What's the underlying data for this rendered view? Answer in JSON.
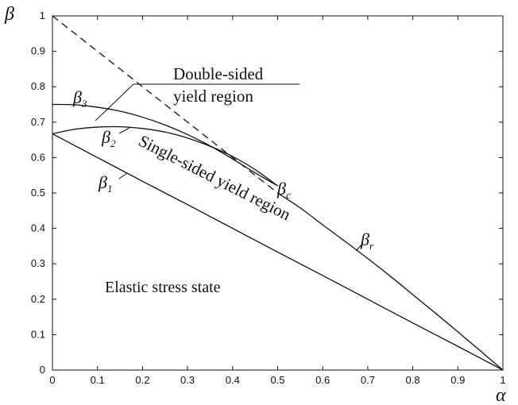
{
  "chart_data": {
    "type": "line",
    "xlabel": "α",
    "ylabel": "β",
    "xlim": [
      0,
      1
    ],
    "ylim": [
      0,
      1
    ],
    "x_ticks": [
      "0",
      "0.1",
      "0.2",
      "0.3",
      "0.4",
      "0.5",
      "0.6",
      "0.7",
      "0.8",
      "0.9",
      "1"
    ],
    "y_ticks": [
      "0",
      "0.1",
      "0.2",
      "0.3",
      "0.4",
      "0.5",
      "0.6",
      "0.7",
      "0.8",
      "0.9",
      "1"
    ],
    "grid": false,
    "series": [
      {
        "name": "β1",
        "style": "solid",
        "x": [
          0,
          0.1,
          0.2,
          0.3,
          0.4,
          0.5,
          0.6,
          0.7,
          0.8,
          0.9,
          1.0
        ],
        "y": [
          0.667,
          0.6,
          0.533,
          0.467,
          0.4,
          0.333,
          0.267,
          0.2,
          0.133,
          0.067,
          0
        ]
      },
      {
        "name": "β2",
        "style": "solid",
        "x": [
          0,
          0.05,
          0.1,
          0.15,
          0.2,
          0.25,
          0.3,
          0.35,
          0.4,
          0.45,
          0.5
        ],
        "y": [
          0.667,
          0.68,
          0.686,
          0.687,
          0.682,
          0.672,
          0.655,
          0.632,
          0.603,
          0.566,
          0.52
        ]
      },
      {
        "name": "β3",
        "style": "solid",
        "x": [
          0,
          0.05,
          0.1,
          0.15,
          0.2,
          0.25,
          0.3,
          0.35,
          0.4,
          0.45,
          0.5
        ],
        "y": [
          0.75,
          0.749,
          0.742,
          0.731,
          0.714,
          0.692,
          0.665,
          0.633,
          0.596,
          0.557,
          0.52
        ]
      },
      {
        "name": "βc",
        "style": "dashed",
        "x": [
          0,
          0.05,
          0.1,
          0.15,
          0.2,
          0.25,
          0.3,
          0.35,
          0.4,
          0.45,
          0.5
        ],
        "y": [
          1.0,
          0.95,
          0.9,
          0.85,
          0.8,
          0.75,
          0.7,
          0.65,
          0.6,
          0.55,
          0.5
        ]
      },
      {
        "name": "βr",
        "style": "solid",
        "x": [
          0.5,
          0.55,
          0.6,
          0.65,
          0.7,
          0.75,
          0.8,
          0.85,
          0.9,
          0.95,
          1.0
        ],
        "y": [
          0.5,
          0.458,
          0.41,
          0.363,
          0.315,
          0.265,
          0.213,
          0.161,
          0.108,
          0.054,
          0
        ]
      }
    ],
    "curve_labels": [
      {
        "base": "β",
        "sub": "1"
      },
      {
        "base": "β",
        "sub": "2"
      },
      {
        "base": "β",
        "sub": "3"
      },
      {
        "base": "β",
        "sub": "c"
      },
      {
        "base": "β",
        "sub": "r"
      }
    ],
    "annotations": {
      "double_line1": "Double-sided",
      "double_line2": "yield region",
      "single": "Single-sided yield region",
      "elastic": "Elastic stress state"
    }
  }
}
